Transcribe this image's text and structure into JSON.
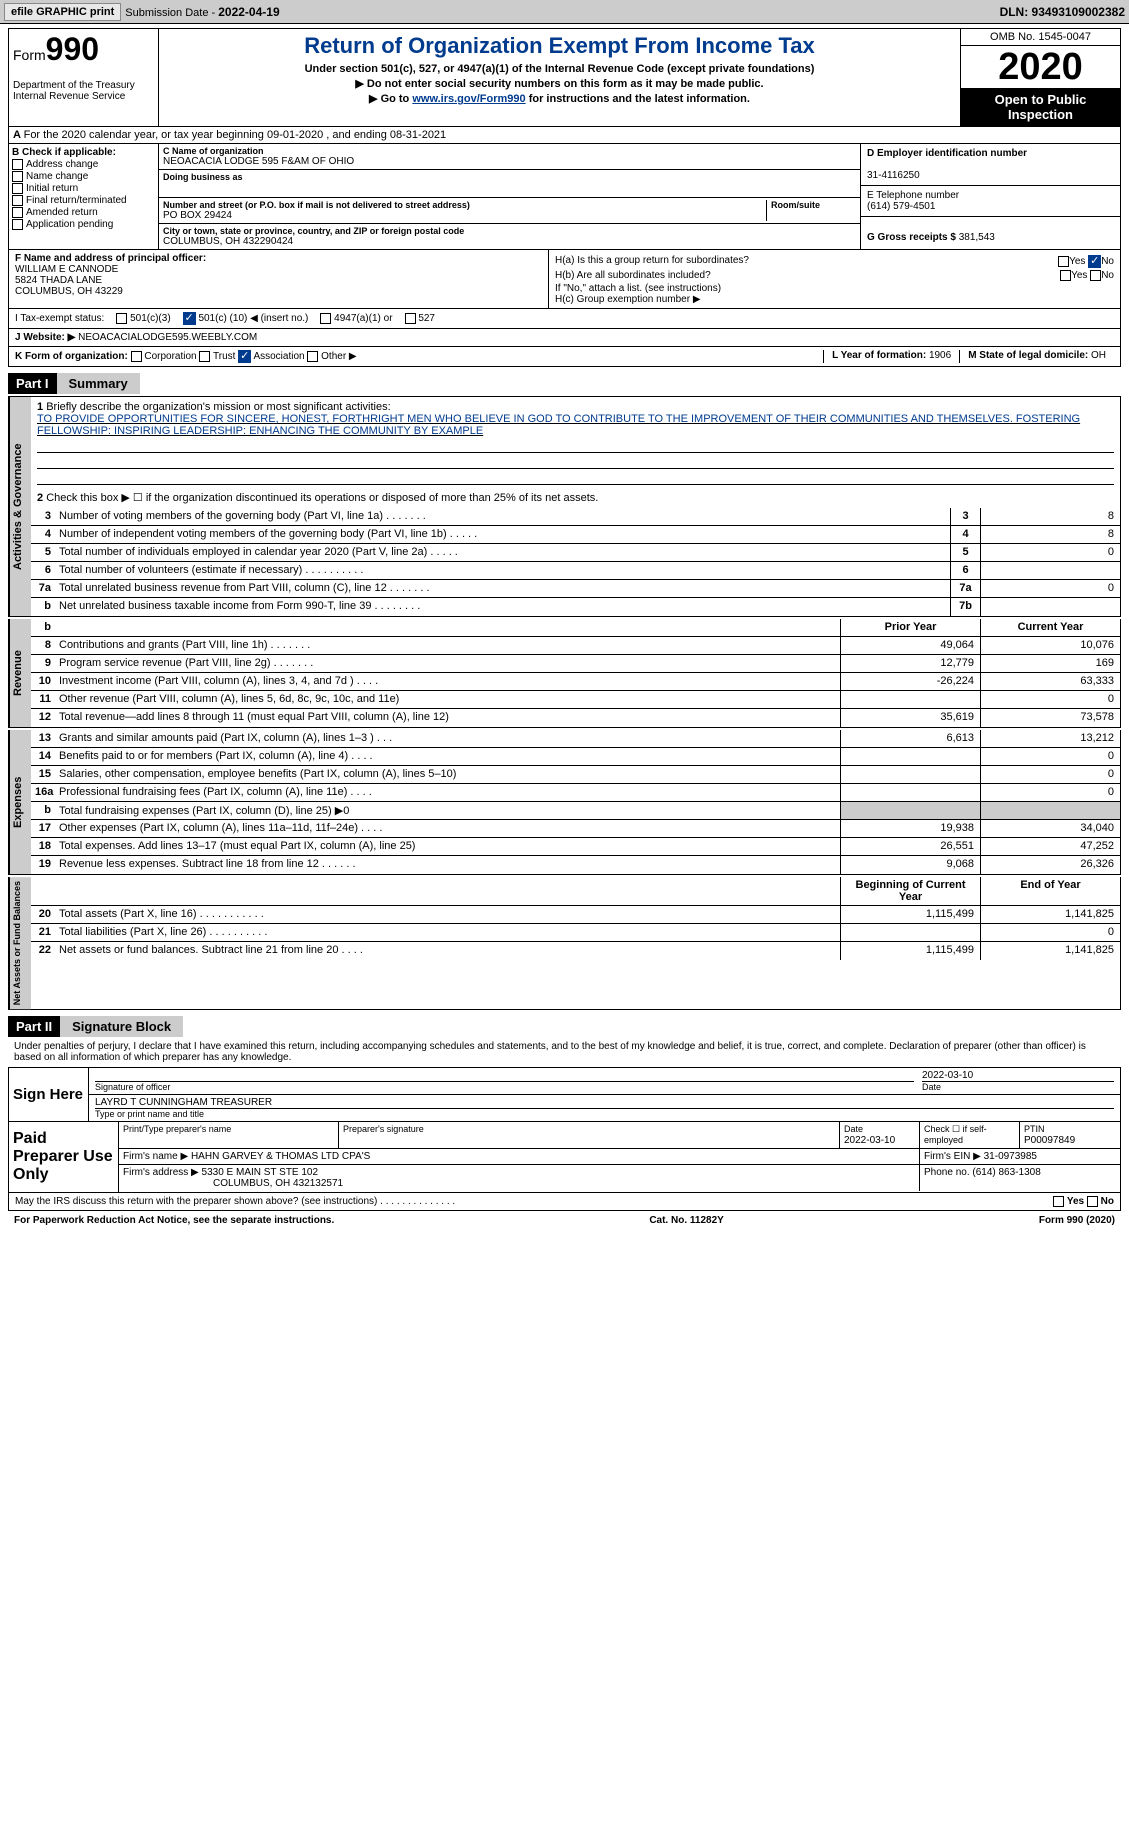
{
  "topbar": {
    "efile_btn": "efile GRAPHIC print",
    "sub_label": "Submission Date - ",
    "sub_date": "2022-04-19",
    "dln": "DLN: 93493109002382"
  },
  "header": {
    "form_prefix": "Form",
    "form_num": "990",
    "dept": "Department of the Treasury\nInternal Revenue Service",
    "title": "Return of Organization Exempt From Income Tax",
    "sub1": "Under section 501(c), 527, or 4947(a)(1) of the Internal Revenue Code (except private foundations)",
    "sub2": "▶ Do not enter social security numbers on this form as it may be made public.",
    "sub3_pre": "▶ Go to ",
    "sub3_link": "www.irs.gov/Form990",
    "sub3_post": " for instructions and the latest information.",
    "omb": "OMB No. 1545-0047",
    "year": "2020",
    "public": "Open to Public Inspection"
  },
  "line_a": "For the 2020 calendar year, or tax year beginning 09-01-2020    , and ending 08-31-2021",
  "boxB": {
    "label": "B Check if applicable:",
    "items": [
      "Address change",
      "Name change",
      "Initial return",
      "Final return/terminated",
      "Amended return",
      "Application pending"
    ]
  },
  "boxC": {
    "name_label": "C Name of organization",
    "name": "NEOACACIA LODGE 595 F&AM OF OHIO",
    "dba_label": "Doing business as",
    "dba": "",
    "street_label": "Number and street (or P.O. box if mail is not delivered to street address)",
    "room_label": "Room/suite",
    "street": "PO BOX 29424",
    "city_label": "City or town, state or province, country, and ZIP or foreign postal code",
    "city": "COLUMBUS, OH  432290424"
  },
  "boxD": {
    "ein_label": "D Employer identification number",
    "ein": "31-4116250",
    "phone_label": "E Telephone number",
    "phone": "(614) 579-4501",
    "gross_label": "G Gross receipts $ ",
    "gross": "381,543"
  },
  "boxF": {
    "label": "F Name and address of principal officer:",
    "name": "WILLIAM E CANNODE",
    "street": "5824 THADA LANE",
    "city": "COLUMBUS, OH  43229"
  },
  "boxH": {
    "a_label": "H(a)  Is this a group return for subordinates?",
    "a_yes": "Yes",
    "a_no": "No",
    "b_label": "H(b)  Are all subordinates included?",
    "b_yes": "Yes",
    "b_no": "No",
    "b_note": "If \"No,\" attach a list. (see instructions)",
    "c_label": "H(c)  Group exemption number ▶"
  },
  "rowI": {
    "label": "I  Tax-exempt status:",
    "opt1": "501(c)(3)",
    "opt2_pre": "501(c) (",
    "opt2_val": "10",
    "opt2_post": ") ◀ (insert no.)",
    "opt3": "4947(a)(1) or",
    "opt4": "527"
  },
  "rowJ": {
    "label": "J  Website: ▶",
    "value": "  NEOACACIALODGE595.WEEBLY.COM"
  },
  "rowK": {
    "label": "K Form of organization:",
    "opts": [
      "Corporation",
      "Trust",
      "Association",
      "Other ▶"
    ],
    "checked_idx": 2,
    "year_label": "L Year of formation: ",
    "year": "1906",
    "domicile_label": "M State of legal domicile: ",
    "domicile": "OH"
  },
  "part1": {
    "header": "Part I",
    "title": "Summary",
    "line1_label": "Briefly describe the organization's mission or most significant activities:",
    "line1_text": "TO PROVIDE OPPORTUNITIES FOR SINCERE, HONEST, FORTHRIGHT MEN WHO BELIEVE IN GOD TO CONTRIBUTE TO THE IMPROVEMENT OF THEIR COMMUNITIES AND THEMSELVES. FOSTERING FELLOWSHIP: INSPIRING LEADERSHIP: ENHANCING THE COMMUNITY BY EXAMPLE",
    "line2": "Check this box ▶ ☐  if the organization discontinued its operations or disposed of more than 25% of its net assets.",
    "rows_gov": [
      {
        "n": "3",
        "label": "Number of voting members of the governing body (Part VI, line 1a)   .    .    .    .    .    .    .",
        "box": "3",
        "val": "8"
      },
      {
        "n": "4",
        "label": "Number of independent voting members of the governing body (Part VI, line 1b)   .    .    .    .    .",
        "box": "4",
        "val": "8"
      },
      {
        "n": "5",
        "label": "Total number of individuals employed in calendar year 2020 (Part V, line 2a)   .    .    .    .    .",
        "box": "5",
        "val": "0"
      },
      {
        "n": "6",
        "label": "Total number of volunteers (estimate if necessary)   .    .    .    .    .    .    .    .    .    .",
        "box": "6",
        "val": ""
      },
      {
        "n": "7a",
        "label": "Total unrelated business revenue from Part VIII, column (C), line 12   .    .    .    .    .    .    .",
        "box": "7a",
        "val": "0"
      },
      {
        "n": "b",
        "label": "Net unrelated business taxable income from Form 990-T, line 39   .    .    .    .    .    .    .    .",
        "box": "7b",
        "val": ""
      }
    ],
    "prior_label": "Prior Year",
    "current_label": "Current Year",
    "rows_rev": [
      {
        "n": "8",
        "label": "Contributions and grants (Part VIII, line 1h)   .    .    .    .    .    .    .",
        "py": "49,064",
        "cy": "10,076"
      },
      {
        "n": "9",
        "label": "Program service revenue (Part VIII, line 2g)   .    .    .    .    .    .    .",
        "py": "12,779",
        "cy": "169"
      },
      {
        "n": "10",
        "label": "Investment income (Part VIII, column (A), lines 3, 4, and 7d )   .    .    .    .",
        "py": "-26,224",
        "cy": "63,333"
      },
      {
        "n": "11",
        "label": "Other revenue (Part VIII, column (A), lines 5, 6d, 8c, 9c, 10c, and 11e)",
        "py": "",
        "cy": "0"
      },
      {
        "n": "12",
        "label": "Total revenue—add lines 8 through 11 (must equal Part VIII, column (A), line 12)",
        "py": "35,619",
        "cy": "73,578"
      }
    ],
    "rows_exp": [
      {
        "n": "13",
        "label": "Grants and similar amounts paid (Part IX, column (A), lines 1–3 )   .    .    .",
        "py": "6,613",
        "cy": "13,212"
      },
      {
        "n": "14",
        "label": "Benefits paid to or for members (Part IX, column (A), line 4)   .    .    .    .",
        "py": "",
        "cy": "0"
      },
      {
        "n": "15",
        "label": "Salaries, other compensation, employee benefits (Part IX, column (A), lines 5–10)",
        "py": "",
        "cy": "0"
      },
      {
        "n": "16a",
        "label": "Professional fundraising fees (Part IX, column (A), line 11e)   .    .    .    .",
        "py": "",
        "cy": "0"
      },
      {
        "n": "b",
        "label": "Total fundraising expenses (Part IX, column (D), line 25) ▶0",
        "py": "SHADED",
        "cy": "SHADED"
      },
      {
        "n": "17",
        "label": "Other expenses (Part IX, column (A), lines 11a–11d, 11f–24e)   .    .    .    .",
        "py": "19,938",
        "cy": "34,040"
      },
      {
        "n": "18",
        "label": "Total expenses. Add lines 13–17 (must equal Part IX, column (A), line 25)",
        "py": "26,551",
        "cy": "47,252"
      },
      {
        "n": "19",
        "label": "Revenue less expenses. Subtract line 18 from line 12   .    .    .    .    .    .",
        "py": "9,068",
        "cy": "26,326"
      }
    ],
    "begin_label": "Beginning of Current Year",
    "end_label": "End of Year",
    "rows_net": [
      {
        "n": "20",
        "label": "Total assets (Part X, line 16)   .    .    .    .    .    .    .    .    .    .    .",
        "py": "1,115,499",
        "cy": "1,141,825"
      },
      {
        "n": "21",
        "label": "Total liabilities (Part X, line 26)   .    .    .    .    .    .    .    .    .    .",
        "py": "",
        "cy": "0"
      },
      {
        "n": "22",
        "label": "Net assets or fund balances. Subtract line 21 from line 20   .    .    .    .",
        "py": "1,115,499",
        "cy": "1,141,825"
      }
    ],
    "tabs": {
      "gov": "Activities & Governance",
      "rev": "Revenue",
      "exp": "Expenses",
      "net": "Net Assets or Fund Balances"
    }
  },
  "part2": {
    "header": "Part II",
    "title": "Signature Block",
    "decl": "Under penalties of perjury, I declare that I have examined this return, including accompanying schedules and statements, and to the best of my knowledge and belief, it is true, correct, and complete. Declaration of preparer (other than officer) is based on all information of which preparer has any knowledge.",
    "sign_here": "Sign Here",
    "sig_officer": "Signature of officer",
    "sig_date": "Date",
    "sig_date_val": "2022-03-10",
    "officer_name": "LAYRD T CUNNINGHAM  TREASURER",
    "officer_label": "Type or print name and title",
    "paid": "Paid Preparer Use Only",
    "prep_name_label": "Print/Type preparer's name",
    "prep_sig_label": "Preparer's signature",
    "prep_date_label": "Date",
    "prep_date": "2022-03-10",
    "self_emp": "Check ☐ if self-employed",
    "ptin_label": "PTIN",
    "ptin": "P00097849",
    "firm_name_label": "Firm's name    ▶ ",
    "firm_name": "HAHN GARVEY & THOMAS LTD CPA'S",
    "firm_ein_label": "Firm's EIN ▶ ",
    "firm_ein": "31-0973985",
    "firm_addr_label": "Firm's address ▶ ",
    "firm_addr1": "5330 E MAIN ST STE 102",
    "firm_addr2": "COLUMBUS, OH  432132571",
    "firm_phone_label": "Phone no. ",
    "firm_phone": "(614) 863-1308",
    "discuss": "May the IRS discuss this return with the preparer shown above? (see instructions)   .    .    .    .    .    .    .    .    .    .    .    .    .    .",
    "discuss_yes": "Yes",
    "discuss_no": "No"
  },
  "footer": {
    "pra": "For Paperwork Reduction Act Notice, see the separate instructions.",
    "cat": "Cat. No. 11282Y",
    "form": "Form 990 (2020)"
  },
  "colors": {
    "link": "#003b8e",
    "shade": "#cccccc"
  }
}
